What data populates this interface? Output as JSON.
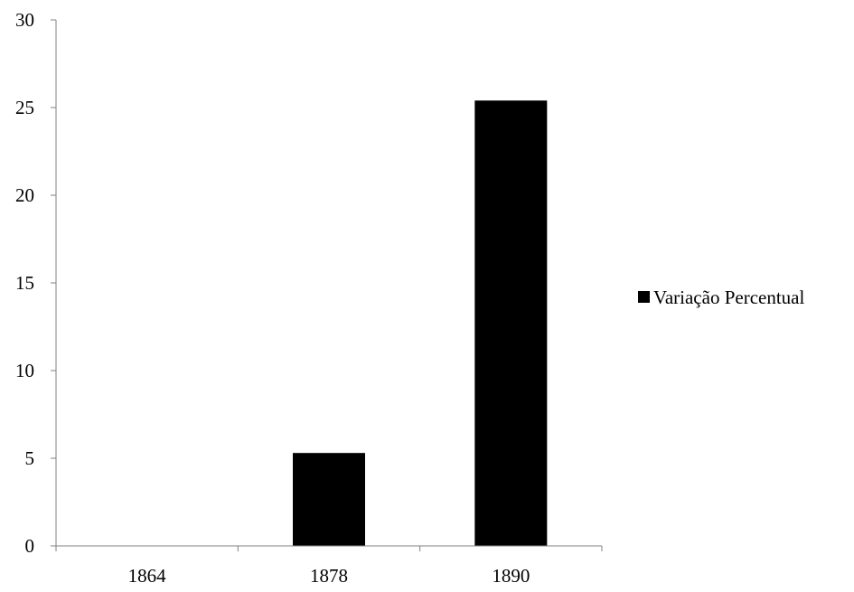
{
  "chart_data": {
    "type": "bar",
    "categories": [
      "1864",
      "1878",
      "1890"
    ],
    "series": [
      {
        "name": "Variação Percentual",
        "values": [
          0,
          5.3,
          25.4
        ]
      }
    ],
    "ylim": [
      0,
      30
    ],
    "yticks": [
      0,
      5,
      10,
      15,
      20,
      25,
      30
    ],
    "title": "",
    "xlabel": "",
    "ylabel": "",
    "grid": false,
    "legend_position": "right",
    "colors": {
      "bar": "#000000",
      "axis": "#808080",
      "text": "#000000"
    }
  }
}
